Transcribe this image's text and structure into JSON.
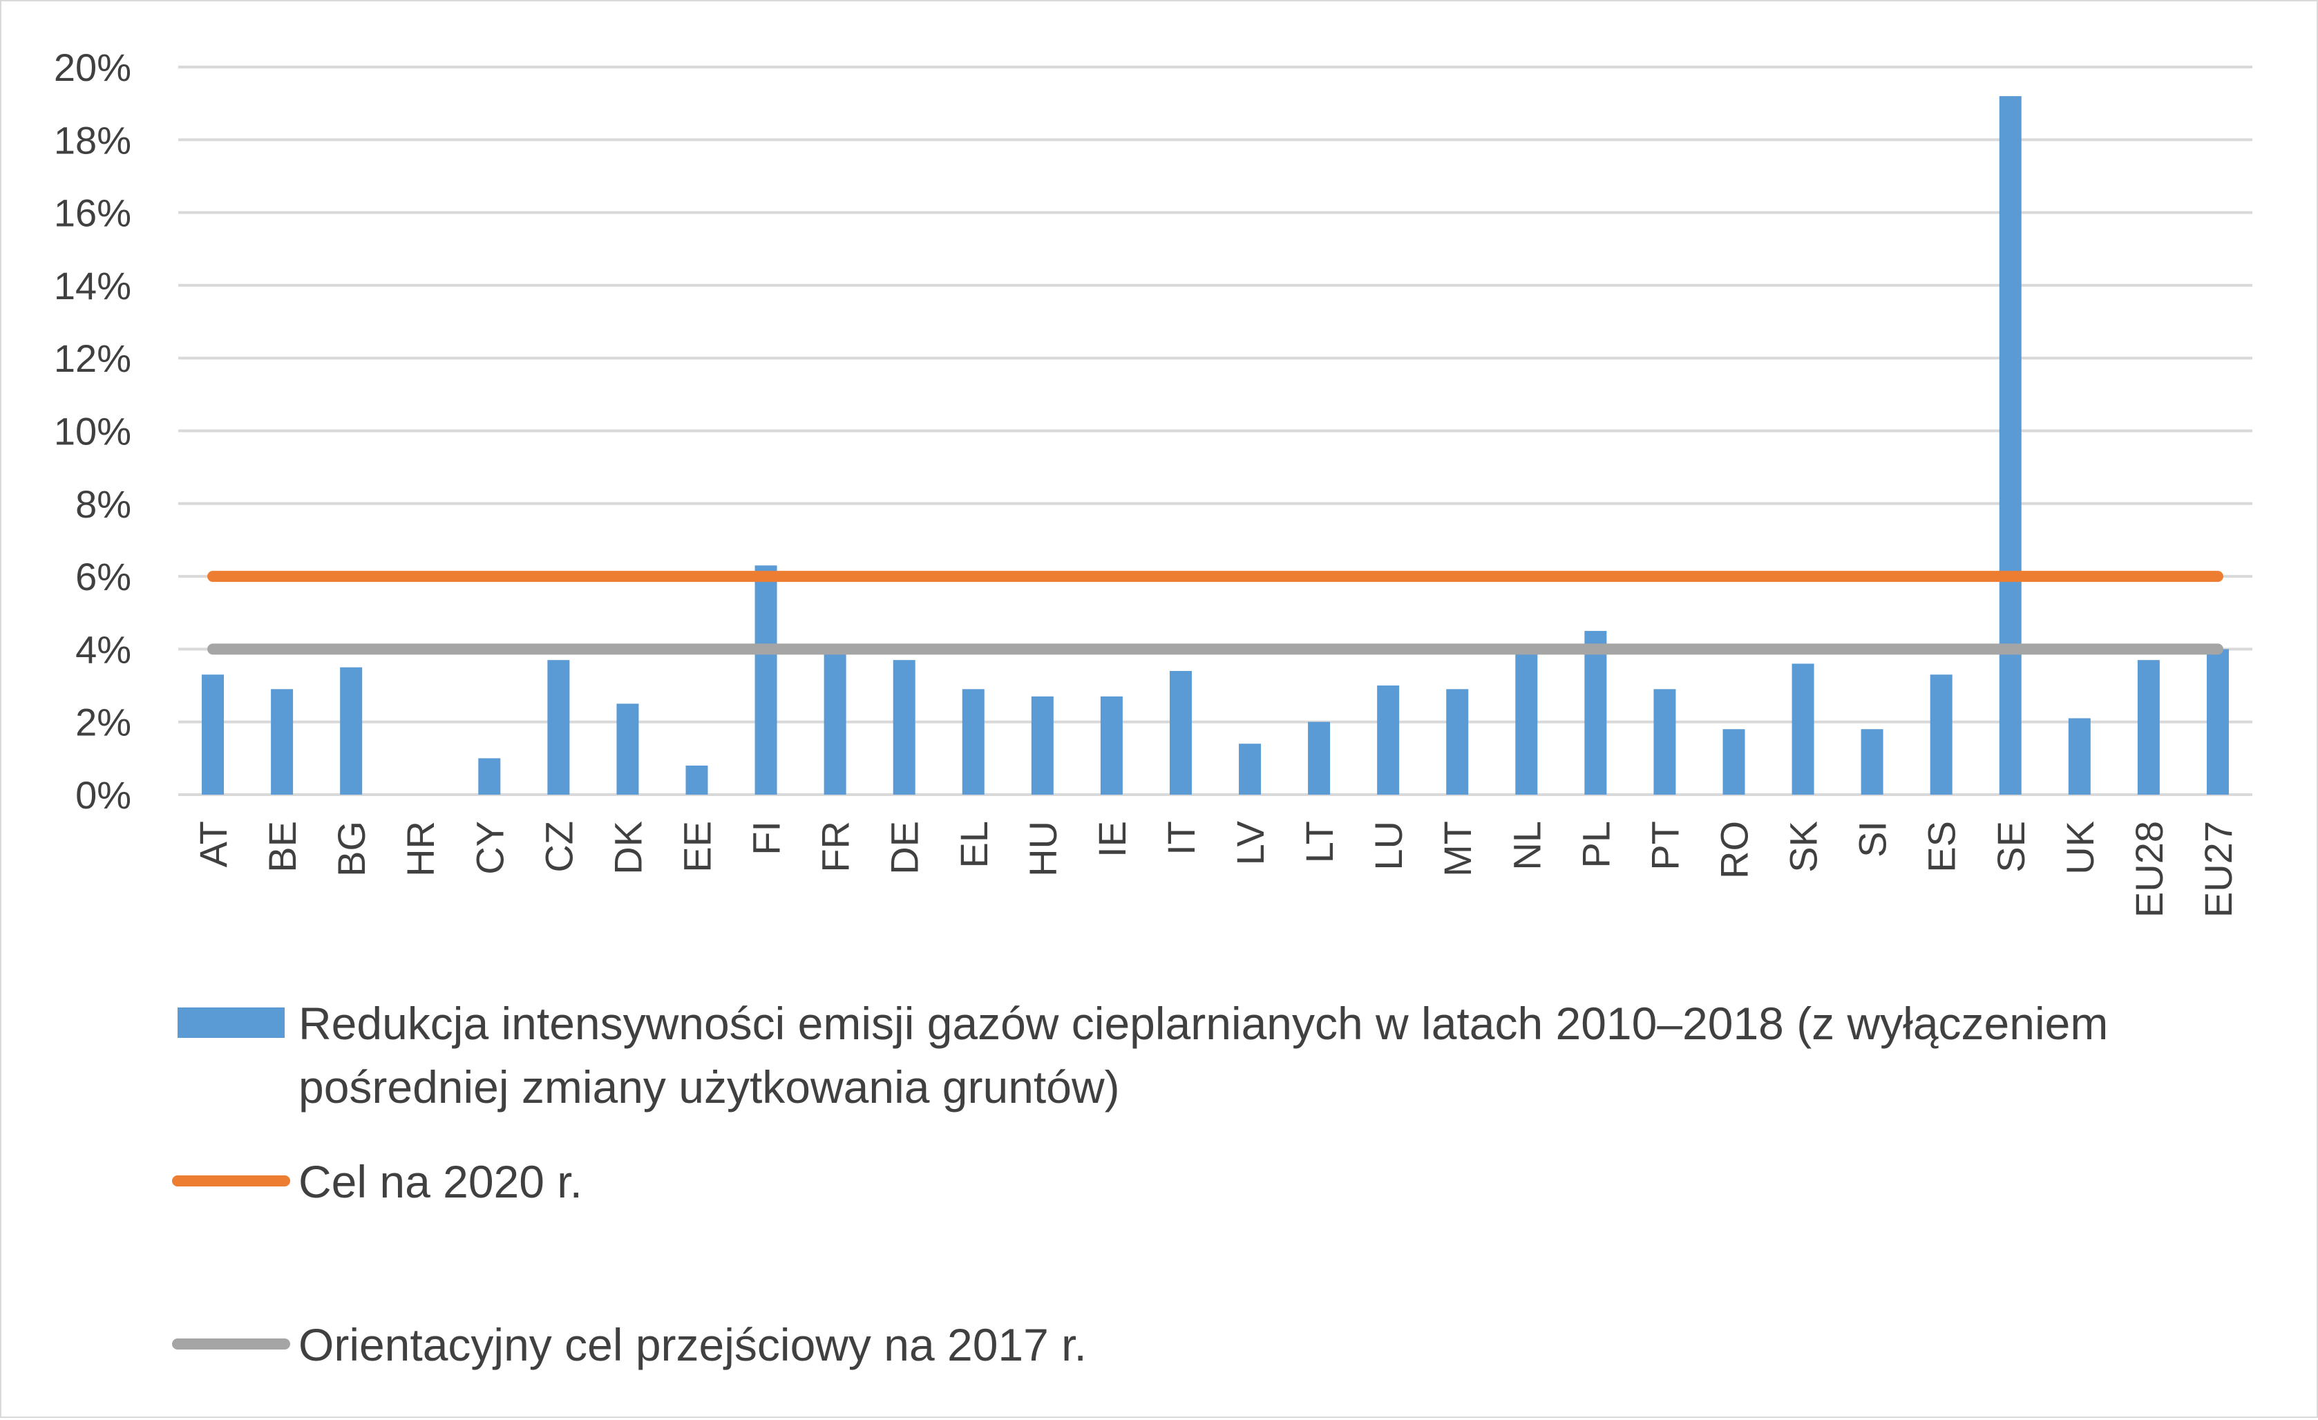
{
  "chart_data": {
    "type": "bar",
    "categories": [
      "AT",
      "BE",
      "BG",
      "HR",
      "CY",
      "CZ",
      "DK",
      "EE",
      "FI",
      "FR",
      "DE",
      "EL",
      "HU",
      "IE",
      "IT",
      "LV",
      "LT",
      "LU",
      "MT",
      "NL",
      "PL",
      "PT",
      "RO",
      "SK",
      "SI",
      "ES",
      "SE",
      "UK",
      "EU28",
      "EU27"
    ],
    "ylim": [
      0,
      20
    ],
    "ytick_step": 2,
    "ytick_suffix": "%",
    "grid": true,
    "legend_position": "bottom",
    "series": [
      {
        "name": "Redukcja intensywności emisji gazów cieplarnianych w latach 2010–2018 (z wyłączeniem pośredniej zmiany użytkowania gruntów)",
        "legend_lines": [
          "Redukcja intensywności emisji gazów cieplarnianych w latach 2010–2018 (z wyłączeniem",
          "pośredniej zmiany użytkowania gruntów)"
        ],
        "kind": "bar",
        "color": "#5b9bd5",
        "values": [
          3.3,
          2.9,
          3.5,
          0,
          1.0,
          3.7,
          2.5,
          0.8,
          6.3,
          3.9,
          3.7,
          2.9,
          2.7,
          2.7,
          3.4,
          1.4,
          2.0,
          3.0,
          2.9,
          3.9,
          4.5,
          2.9,
          1.8,
          3.6,
          1.8,
          3.3,
          19.2,
          2.1,
          3.7,
          4.0
        ]
      },
      {
        "name": "Cel na 2020 r.",
        "kind": "line",
        "color": "#ed7d31",
        "value": 6
      },
      {
        "name": "Orientacyjny cel przejściowy na 2017 r.",
        "kind": "line",
        "color": "#a5a5a5",
        "value": 4
      }
    ]
  }
}
